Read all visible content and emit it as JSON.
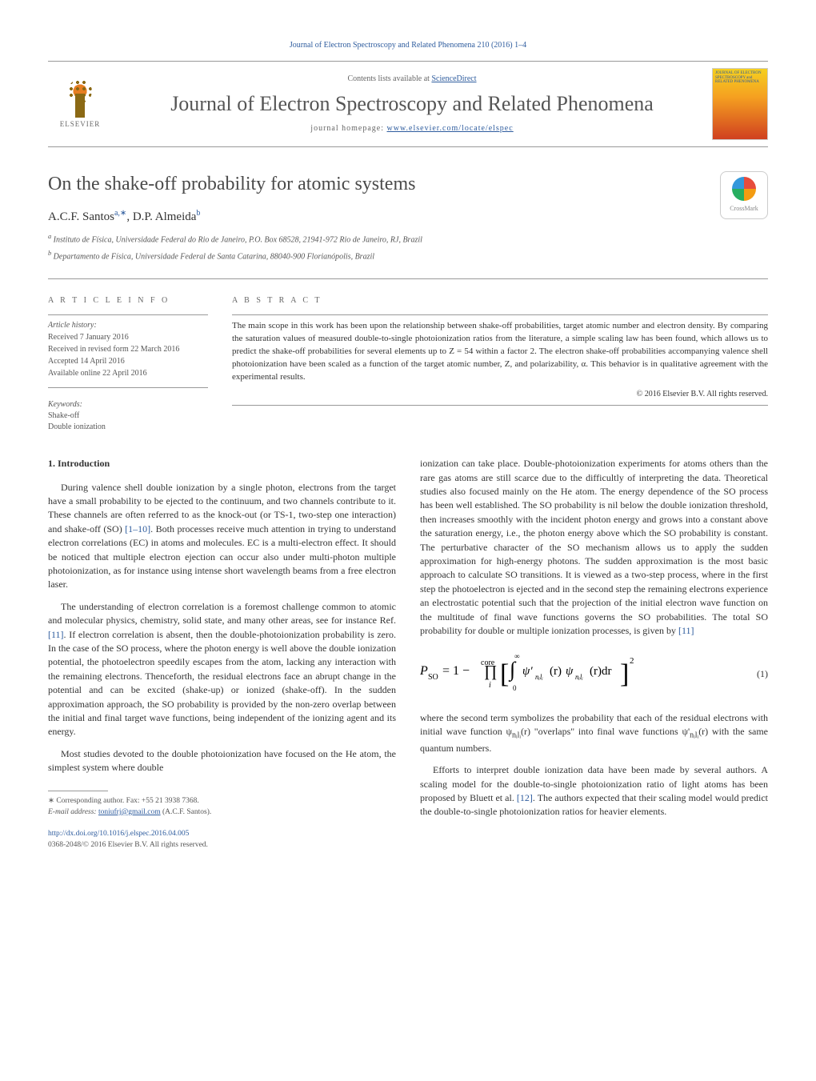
{
  "journal_ref": "Journal of Electron Spectroscopy and Related Phenomena 210 (2016) 1–4",
  "banner": {
    "publisher": "ELSEVIER",
    "contents_prefix": "Contents lists available at ",
    "contents_link": "ScienceDirect",
    "journal_title": "Journal of Electron Spectroscopy and Related Phenomena",
    "homepage_prefix": "journal homepage: ",
    "homepage_url": "www.elsevier.com/locate/elspec",
    "cover_text": "JOURNAL OF ELECTRON SPECTROSCOPY and RELATED PHENOMENA"
  },
  "crossmark_label": "CrossMark",
  "article": {
    "title": "On the shake-off probability for atomic systems",
    "authors_html": "A.C.F. Santos",
    "author1": "A.C.F. Santos",
    "author1_sup": "a,∗",
    "author2": "D.P. Almeida",
    "author2_sup": "b",
    "affil_a": "Instituto de Física, Universidade Federal do Rio de Janeiro, P.O. Box 68528, 21941-972 Rio de Janeiro, RJ, Brazil",
    "affil_b": "Departamento de Física, Universidade Federal de Santa Catarina, 88040-900 Florianópolis, Brazil"
  },
  "info": {
    "heading": "a r t i c l e   i n f o",
    "history_label": "Article history:",
    "received": "Received 7 January 2016",
    "revised": "Received in revised form 22 March 2016",
    "accepted": "Accepted 14 April 2016",
    "online": "Available online 22 April 2016",
    "keywords_label": "Keywords:",
    "kw1": "Shake-off",
    "kw2": "Double ionization"
  },
  "abstract": {
    "heading": "a b s t r a c t",
    "text": "The main scope in this work has been upon the relationship between shake-off probabilities, target atomic number and electron density. By comparing the saturation values of measured double-to-single photoionization ratios from the literature, a simple scaling law has been found, which allows us to predict the shake-off probabilities for several elements up to Z = 54 within a factor 2. The electron shake-off probabilities accompanying valence shell photoionization have been scaled as a function of the target atomic number, Z, and polarizability, α. This behavior is in qualitative agreement with the experimental results.",
    "copyright": "© 2016 Elsevier B.V. All rights reserved."
  },
  "section1_heading": "1. Introduction",
  "body": {
    "p1a": "During valence shell double ionization by a single photon, electrons from the target have a small probability to be ejected to the continuum, and two channels contribute to it. These channels are often referred to as the knock-out (or TS-1, two-step one interaction) and shake-off (SO) ",
    "p1_ref": "[1–10]",
    "p1b": ". Both processes receive much attention in trying to understand electron correlations (EC) in atoms and molecules. EC is a multi-electron effect. It should be noticed that multiple electron ejection can occur also under multi-photon multiple photoionization, as for instance using intense short wavelength beams from a free electron laser.",
    "p2a": "The understanding of electron correlation is a foremost challenge common to atomic and molecular physics, chemistry, solid state, and many other areas, see for instance Ref. ",
    "p2_ref": "[11]",
    "p2b": ". If electron correlation is absent, then the double-photoionization probability is zero. In the case of the SO process, where the photon energy is well above the double ionization potential, the photoelectron speedily escapes from the atom, lacking any interaction with the remaining electrons. Thenceforth, the residual electrons face an abrupt change in the potential and can be excited (shake-up) or ionized (shake-off). In the sudden approximation approach, the SO probability is provided by the non-zero overlap between the initial and final target wave functions, being independent of the ionizing agent and its energy.",
    "p3": "Most studies devoted to the double photoionization have focused on the He atom, the simplest system where double",
    "p4a": "ionization can take place. Double-photoionization experiments for atoms others than the rare gas atoms are still scarce due to the difficultly of interpreting the data. Theoretical studies also focused mainly on the He atom. The energy dependence of the SO process has been well established. The SO probability is nil below the double ionization threshold, then increases smoothly with the incident photon energy and grows into a constant above the saturation energy, i.e., the photon energy above which the SO probability is constant. The perturbative character of the SO mechanism allows us to apply the sudden approximation for high-energy photons. The sudden approximation is the most basic approach to calculate SO transitions. It is viewed as a two-step process, where in the first step the photoelectron is ejected and in the second step the remaining electrons experience an electrostatic potential such that the projection of the initial electron wave function on the multitude of final wave functions governs the SO probabilities. The total SO probability for double or multiple ionization processes, is given by ",
    "p4_ref": "[11]",
    "p5a": "where the second term symbolizes the probability that each of the residual electrons with initial wave function ψ",
    "p5_sub1": "nᵢlᵢ",
    "p5b": "(r) \"overlaps\" into final wave functions ψ'",
    "p5_sub2": "nᵢlᵢ",
    "p5c": "(r) with the same quantum numbers.",
    "p6a": "Efforts to interpret double ionization data have been made by several authors. A scaling model for the double-to-single photoionization ratio of light atoms has been proposed by Bluett et al. ",
    "p6_ref": "[12]",
    "p6b": ". The authors expected that their scaling model would predict the double-to-single photoionization ratios for heavier elements."
  },
  "equation": {
    "display": "P_SO = 1 − ∏ᵢᶜᵒʳᵉ [ ∫₀^∞ ψ'nᵢlᵢ(r) ψnᵢlᵢ(r) dr ]²",
    "number": "(1)"
  },
  "footnote": {
    "corresp_label": "∗ Corresponding author. Fax: +55 21 3938 7368.",
    "email_label": "E-mail address: ",
    "email": "toniufrj@gmail.com",
    "email_who": " (A.C.F. Santos)."
  },
  "doi": {
    "url": "http://dx.doi.org/10.1016/j.elspec.2016.04.005",
    "issn_copy": "0368-2048/© 2016 Elsevier B.V. All rights reserved."
  },
  "affil_a_sup": "a",
  "affil_b_sup": "b",
  "colors": {
    "link": "#2e5c9e",
    "text": "#333333",
    "muted": "#666666",
    "rule": "#999999"
  }
}
